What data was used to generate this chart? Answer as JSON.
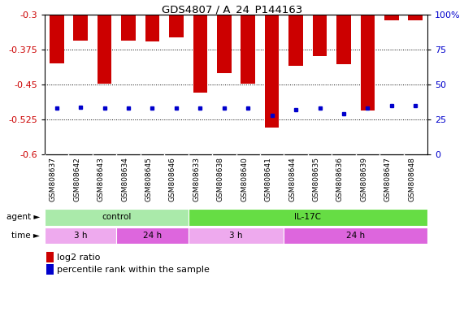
{
  "title": "GDS4807 / A_24_P144163",
  "samples": [
    "GSM808637",
    "GSM808642",
    "GSM808643",
    "GSM808634",
    "GSM808645",
    "GSM808646",
    "GSM808633",
    "GSM808638",
    "GSM808640",
    "GSM808641",
    "GSM808644",
    "GSM808635",
    "GSM808636",
    "GSM808639",
    "GSM808647",
    "GSM808648"
  ],
  "log2_ratio": [
    -0.405,
    -0.355,
    -0.449,
    -0.355,
    -0.358,
    -0.348,
    -0.467,
    -0.425,
    -0.449,
    -0.543,
    -0.41,
    -0.389,
    -0.407,
    -0.505,
    -0.312,
    -0.313
  ],
  "percentile": [
    33,
    34,
    33,
    33,
    33,
    33,
    33,
    33,
    33,
    28,
    32,
    33,
    29,
    33,
    35,
    35
  ],
  "ylim_left": [
    -0.6,
    -0.3
  ],
  "ylim_right": [
    0,
    100
  ],
  "yticks_left": [
    -0.6,
    -0.525,
    -0.45,
    -0.375,
    -0.3
  ],
  "yticks_right": [
    0,
    25,
    50,
    75,
    100
  ],
  "bar_color": "#cc0000",
  "dot_color": "#0000cc",
  "bar_width": 0.6,
  "agent_groups": [
    {
      "label": "control",
      "start": 0,
      "end": 6,
      "color": "#aaeaaa"
    },
    {
      "label": "IL-17C",
      "start": 6,
      "end": 16,
      "color": "#66dd44"
    }
  ],
  "time_groups": [
    {
      "label": "3 h",
      "start": 0,
      "end": 3,
      "color": "#eeaaee"
    },
    {
      "label": "24 h",
      "start": 3,
      "end": 6,
      "color": "#dd66dd"
    },
    {
      "label": "3 h",
      "start": 6,
      "end": 10,
      "color": "#eeaaee"
    },
    {
      "label": "24 h",
      "start": 10,
      "end": 16,
      "color": "#dd66dd"
    }
  ],
  "legend_bar_color": "#cc0000",
  "legend_dot_color": "#0000cc",
  "tick_label_color_left": "#cc0000",
  "tick_label_color_right": "#0000cc",
  "label_fontsize": 7.5,
  "tick_fontsize": 8
}
